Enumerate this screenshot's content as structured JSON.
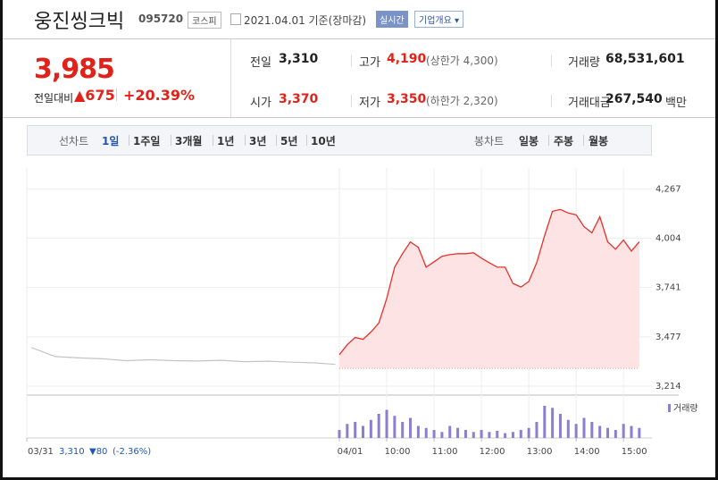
{
  "header": {
    "name": "웅진씽크빅",
    "code": "095720",
    "market": "코스피",
    "date": "2021.04.01 기준(장마감)",
    "realtime": "실시간",
    "company": "기업개요"
  },
  "quote": {
    "price": "3,985",
    "change_label": "전일대비",
    "change": "▲675",
    "change_rate": "+20.39%",
    "up_color": "#e0221a",
    "rows": [
      [
        {
          "label": "전일",
          "value": "3,310",
          "color": "#222222"
        },
        {
          "label": "고가",
          "value": "4,190",
          "note": "(상한가 4,300)",
          "color": "#e0221a"
        },
        {
          "label": "거래량",
          "value": "68,531,601",
          "color": "#222222"
        }
      ],
      [
        {
          "label": "시가",
          "value": "3,370",
          "color": "#e0221a"
        },
        {
          "label": "저가",
          "value": "3,350",
          "note": "(하한가 2,320)",
          "color": "#e0221a"
        },
        {
          "label": "거래대금",
          "value": "267,540",
          "unit": "백만",
          "color": "#222222"
        }
      ]
    ]
  },
  "tabs": {
    "line_label": "선차트",
    "line": [
      "1일",
      "1주일",
      "3개월",
      "1년",
      "3년",
      "5년",
      "10년"
    ],
    "selected": 0,
    "candle_label": "봉차트",
    "candle": [
      "일봉",
      "주봉",
      "월봉"
    ]
  },
  "chart_data": {
    "type": "line",
    "x": [
      0,
      10,
      20,
      30,
      40,
      50,
      60,
      70,
      80,
      90,
      100,
      110,
      120,
      130,
      140,
      150,
      160,
      170,
      180,
      190,
      200,
      210,
      220,
      230,
      240,
      250,
      260,
      270,
      280,
      290,
      300,
      310,
      320,
      330,
      340,
      350,
      360,
      370,
      380
    ],
    "series": [
      {
        "color": "#e8302a",
        "fill": "#fde3e3",
        "values": [
          3382,
          3435,
          3474,
          3464,
          3503,
          3551,
          3681,
          3849,
          3921,
          3984,
          3955,
          3849,
          3878,
          3907,
          3916,
          3921,
          3921,
          3926,
          3897,
          3873,
          3849,
          3849,
          3762,
          3743,
          3772,
          3873,
          4017,
          4147,
          4157,
          4138,
          4128,
          4065,
          4032,
          4118,
          3984,
          3945,
          3994,
          3935,
          3985
        ]
      },
      {
        "name": "거래량",
        "color": "#8b7fd1",
        "axis": "y2",
        "values": [
          20,
          35,
          40,
          30,
          45,
          60,
          70,
          55,
          40,
          50,
          30,
          25,
          20,
          15,
          30,
          25,
          20,
          15,
          20,
          15,
          18,
          12,
          15,
          20,
          25,
          40,
          80,
          75,
          60,
          45,
          35,
          50,
          40,
          30,
          25,
          20,
          35,
          30,
          25
        ]
      }
    ],
    "prev_day": {
      "color": "#c4c4c4",
      "x": [
        -390,
        -360,
        -330,
        -300,
        -270,
        -240,
        -210,
        -180,
        -150,
        -120,
        -90,
        -60,
        -30,
        -5
      ],
      "values": [
        3420,
        3372,
        3365,
        3360,
        3350,
        3355,
        3350,
        3348,
        3352,
        3345,
        3347,
        3342,
        3338,
        3330
      ]
    },
    "baseline": 3310,
    "xlim": [
      -396,
      396
    ],
    "xticks": [
      {
        "value": -396,
        "label": "03/31"
      },
      {
        "value": 0,
        "label": "04/01"
      },
      {
        "value": 60,
        "label": "10:00"
      },
      {
        "value": 120,
        "label": "11:00"
      },
      {
        "value": 180,
        "label": "12:00"
      },
      {
        "value": 240,
        "label": "13:00"
      },
      {
        "value": 300,
        "label": "14:00"
      },
      {
        "value": 360,
        "label": "15:00"
      }
    ],
    "ylim": [
      3176,
      4378
    ],
    "yticks": [
      {
        "value": 4267,
        "label": "4,267"
      },
      {
        "value": 4004,
        "label": "4,004"
      },
      {
        "value": 3741,
        "label": "3,741"
      },
      {
        "value": 3477,
        "label": "3,477"
      },
      {
        "value": 3214,
        "label": "3,214"
      }
    ],
    "y2lim": [
      0,
      100
    ],
    "grid": true,
    "prev_info": {
      "close": "3,310",
      "change": "▼80",
      "rate": "(-2.36%)",
      "color": "#1f57b8"
    }
  }
}
